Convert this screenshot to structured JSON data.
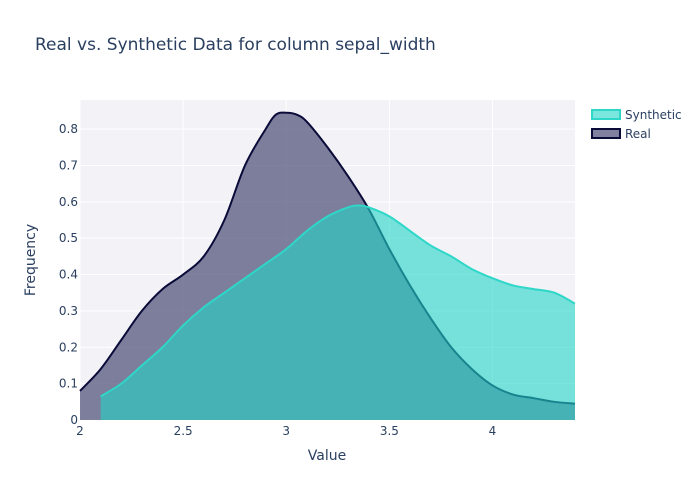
{
  "chart_data": {
    "type": "area",
    "title": "Real vs. Synthetic Data for column sepal_width",
    "xlabel": "Value",
    "ylabel": "Frequency",
    "xlim": [
      2.0,
      4.4
    ],
    "ylim": [
      0,
      0.88
    ],
    "xticks": [
      2,
      2.5,
      3,
      3.5,
      4
    ],
    "xtick_labels": [
      "2",
      "2.5",
      "3",
      "3.5",
      "4"
    ],
    "yticks": [
      0,
      0.1,
      0.2,
      0.3,
      0.4,
      0.5,
      0.6,
      0.7,
      0.8
    ],
    "ytick_labels": [
      "0",
      "0.1",
      "0.2",
      "0.3",
      "0.4",
      "0.5",
      "0.6",
      "0.7",
      "0.8"
    ],
    "grid": true,
    "legend_position": "top-right",
    "colors": {
      "plot_bg": "#f3f3f7",
      "grid": "#ffffff",
      "text": "#2a3f5f",
      "real_line": "#0b0b3a",
      "real_fill": "#3d3d6b",
      "synthetic_line": "#2ed7c8",
      "synthetic_fill": "#21d6c6"
    },
    "series": [
      {
        "name": "Synthetic",
        "x": [
          2.1,
          2.2,
          2.3,
          2.4,
          2.5,
          2.6,
          2.7,
          2.8,
          2.9,
          3.0,
          3.1,
          3.2,
          3.3,
          3.35,
          3.4,
          3.5,
          3.6,
          3.7,
          3.8,
          3.9,
          4.0,
          4.1,
          4.2,
          4.3,
          4.4
        ],
        "y": [
          0.065,
          0.1,
          0.15,
          0.2,
          0.26,
          0.31,
          0.35,
          0.39,
          0.43,
          0.47,
          0.52,
          0.56,
          0.585,
          0.59,
          0.585,
          0.56,
          0.52,
          0.48,
          0.45,
          0.415,
          0.39,
          0.37,
          0.36,
          0.35,
          0.32
        ]
      },
      {
        "name": "Real",
        "x": [
          2.0,
          2.1,
          2.2,
          2.3,
          2.4,
          2.5,
          2.6,
          2.7,
          2.8,
          2.9,
          2.95,
          3.0,
          3.05,
          3.1,
          3.2,
          3.3,
          3.4,
          3.5,
          3.6,
          3.7,
          3.8,
          3.9,
          4.0,
          4.1,
          4.2,
          4.3,
          4.4
        ],
        "y": [
          0.08,
          0.14,
          0.22,
          0.3,
          0.36,
          0.4,
          0.45,
          0.55,
          0.7,
          0.8,
          0.84,
          0.845,
          0.84,
          0.82,
          0.75,
          0.67,
          0.58,
          0.47,
          0.37,
          0.28,
          0.2,
          0.14,
          0.095,
          0.07,
          0.06,
          0.05,
          0.045
        ]
      }
    ]
  }
}
